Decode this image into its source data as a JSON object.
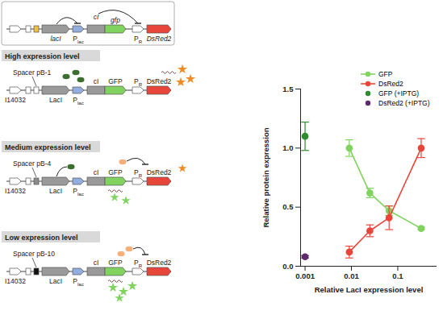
{
  "chart_data": {
    "type": "line",
    "x_label": "Relative LacI expression level",
    "y_label": "Relative protein expression",
    "log": "x",
    "xlim": [
      0.0008,
      0.7
    ],
    "xticks": [
      0.001,
      0.01,
      0.1
    ],
    "ylim": [
      0,
      1.5
    ],
    "yticks": [
      {
        "value": 0,
        "label": "0.0"
      },
      {
        "value": 0.5,
        "label": "0.5"
      },
      {
        "value": 1,
        "label": "1.0"
      },
      {
        "value": 1.5,
        "label": "1.5"
      }
    ],
    "legend": "top-right",
    "series": [
      {
        "name": "GFP",
        "color": "#7fd35e",
        "type": "line",
        "marker": "circle",
        "x": [
          0.009,
          0.025,
          0.065,
          0.32
        ],
        "values": [
          1.0,
          0.62,
          0.47,
          0.32
        ],
        "errors": [
          0.07,
          0.04,
          0.04,
          0.01
        ]
      },
      {
        "name": "DsRed2",
        "color": "#e8463a",
        "type": "line",
        "marker": "circle",
        "x": [
          0.009,
          0.025,
          0.065,
          0.32
        ],
        "values": [
          0.12,
          0.3,
          0.41,
          1.0
        ],
        "errors": [
          0.05,
          0.05,
          0.1,
          0.08
        ]
      },
      {
        "name": "GFP (+IPTG)",
        "color": "#2e8b2e",
        "type": "scatter",
        "marker": "circle",
        "x": [
          0.001
        ],
        "values": [
          1.1
        ],
        "errors": [
          0.12
        ]
      },
      {
        "name": "DsRed2 (+IPTG)",
        "color": "#5e2a6b",
        "type": "scatter",
        "marker": "circle",
        "x": [
          0.001
        ],
        "values": [
          0.08
        ],
        "errors": [
          0.01
        ]
      }
    ]
  },
  "diagram": {
    "construct": {
      "gene1": "lacI",
      "promoter1": [
        "P",
        "lac"
      ],
      "gene2": "cI",
      "gene3": "gfp",
      "promoter2": [
        "P",
        "R"
      ],
      "gene4": "DsRed2"
    },
    "panels": [
      {
        "title": "High expression level",
        "spacer": "Spacer pB-1",
        "part": "I14032",
        "protein1": "LacI",
        "promoter1": [
          "P",
          "lac"
        ],
        "protein2": "cI",
        "protein3": "GFP",
        "promoter2": [
          "P",
          "R"
        ],
        "reporter": "DsRed2"
      },
      {
        "title": "Medium expression level",
        "spacer": "Spacer pB-4",
        "part": "I14032",
        "protein1": "LacI",
        "promoter1": [
          "P",
          "lac"
        ],
        "protein2": "cI",
        "protein3": "GFP",
        "promoter2": [
          "P",
          "R"
        ],
        "reporter": "DsRed2"
      },
      {
        "title": "Low expression level",
        "spacer": "Spacer pB-10",
        "part": "I14032",
        "protein1": "LacI",
        "promoter1": [
          "P",
          "lac"
        ],
        "protein2": "cI",
        "protein3": "GFP",
        "promoter2": [
          "P",
          "R"
        ],
        "reporter": "DsRed2"
      }
    ]
  }
}
